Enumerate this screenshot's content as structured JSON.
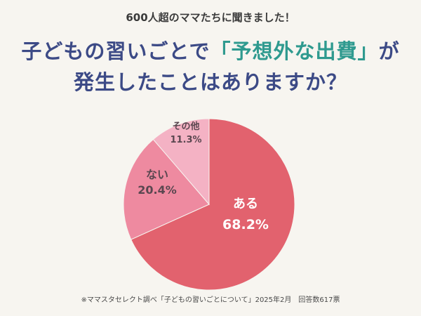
{
  "header": {
    "eyebrow": "600人超のママたちに聞きました！",
    "title_line1_pre": "子どもの習いごとで",
    "title_line1_highlight": "「予想外な出費」",
    "title_line1_post": "が",
    "title_line2": "発生したことはありますか？"
  },
  "colors": {
    "title": "#3c4a86",
    "highlight": "#2f9a8f",
    "slices": [
      "#e2626e",
      "#ee8aa0",
      "#f4b2c4"
    ]
  },
  "chart_data": {
    "type": "pie",
    "slices": [
      {
        "label": "ある",
        "value": 68.2,
        "display": "68.2%"
      },
      {
        "label": "ない",
        "value": 20.4,
        "display": "20.4%"
      },
      {
        "label": "その他",
        "value": 11.3,
        "display": "11.3%"
      }
    ]
  },
  "footnote": "※ママスタセレクト調べ「子どもの習いごとについて」2025年2月　回答数617票"
}
